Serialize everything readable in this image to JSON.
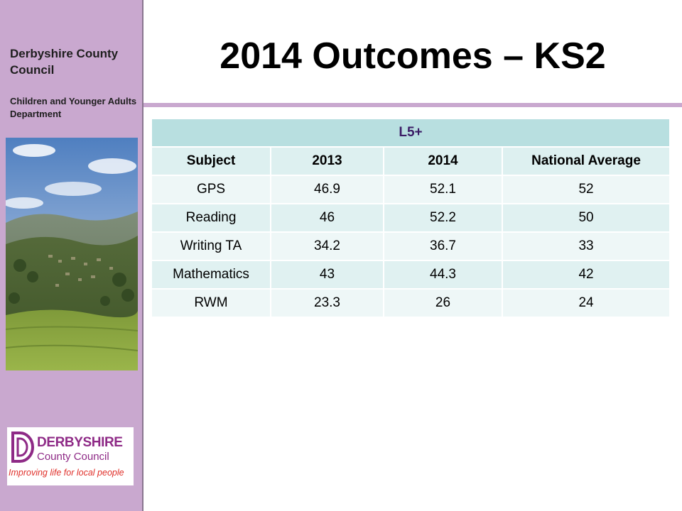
{
  "sidebar": {
    "org_name": "Derbyshire County Council",
    "department": "Children and Younger Adults Department",
    "logo": {
      "word1": "DERBYSHIRE",
      "word2": "County Council",
      "tagline": "Improving life for local people"
    }
  },
  "title": "2014 Outcomes – KS2",
  "table": {
    "group_header": "L5+",
    "columns": [
      "Subject",
      "2013",
      "2014",
      "National Average"
    ],
    "rows": [
      [
        "GPS",
        "46.9",
        "52.1",
        "52"
      ],
      [
        "Reading",
        "46",
        "52.2",
        "50"
      ],
      [
        "Writing TA",
        "34.2",
        "36.7",
        "33"
      ],
      [
        "Mathematics",
        "43",
        "44.3",
        "42"
      ],
      [
        "RWM",
        "23.3",
        "26",
        "24"
      ]
    ]
  },
  "colors": {
    "sidebar": "#c9a8cf",
    "table_header": "#b8dfe0",
    "group_header_text": "#3b1d66",
    "logo_purple": "#8e2a86",
    "logo_red": "#e0312b"
  }
}
